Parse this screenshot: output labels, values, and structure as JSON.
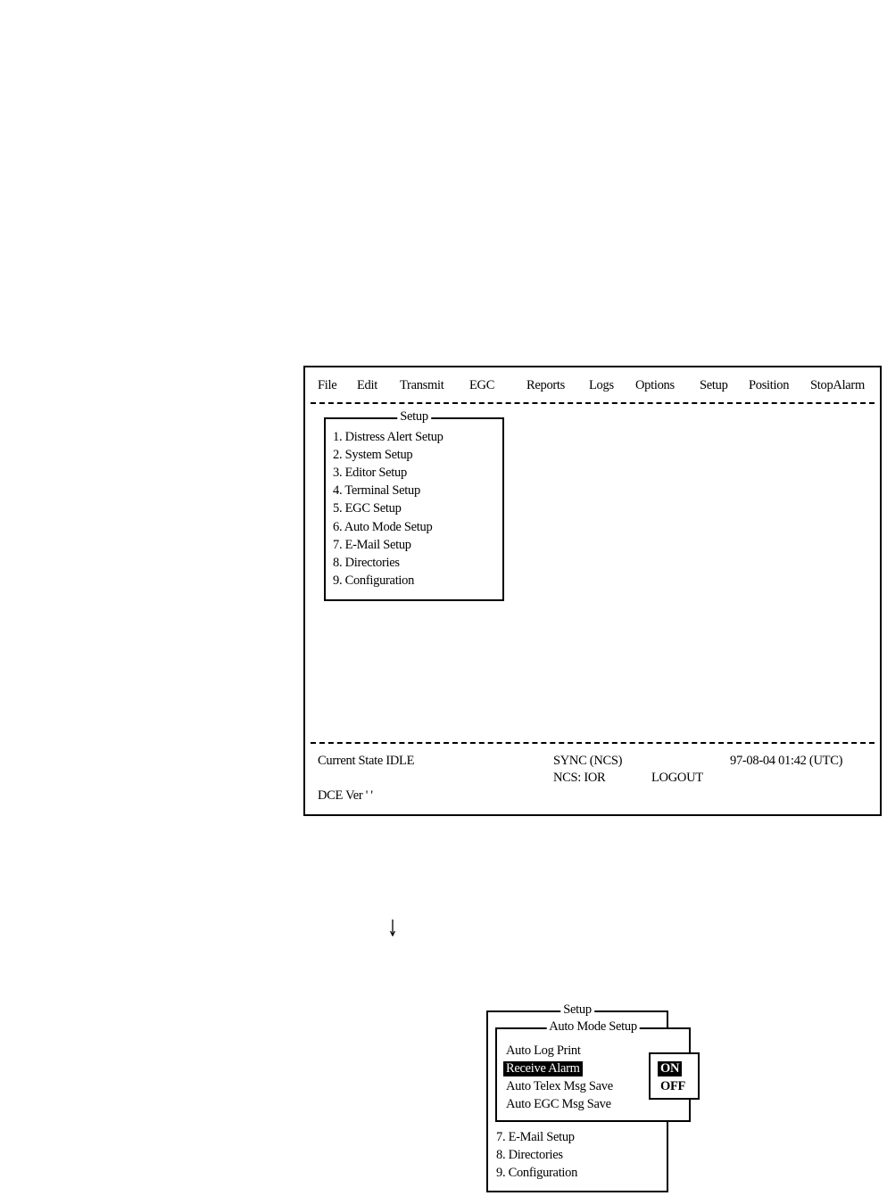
{
  "menu_bar": [
    "File",
    "Edit",
    "Transmit",
    "EGC",
    "Reports",
    "Logs",
    "Options",
    "Setup",
    "Position",
    "StopAlarm"
  ],
  "setup_menu": {
    "title": "Setup",
    "items": [
      "1. Distress Alert Setup",
      "2. System Setup",
      "3. Editor Setup",
      "4. Terminal Setup",
      "5. EGC Setup",
      "6. Auto Mode Setup",
      "7. E-Mail Setup",
      "8. Directories",
      "9. Configuration"
    ]
  },
  "status": {
    "current_state": "Current State IDLE",
    "sync": "SYNC (NCS)",
    "datetime": "97-08-04  01:42 (UTC)",
    "ncs": "NCS: IOR",
    "login": "LOGOUT",
    "dce_ver": "DCE Ver ' '"
  },
  "arrow_icon": "down-arrow",
  "detail": {
    "outer_title": "Setup",
    "inner_title": "Auto Mode Setup",
    "inner_items": [
      "Auto Log Print",
      "Receive Alarm",
      "Auto Telex Msg Save",
      "Auto EGC Msg Save"
    ],
    "selected_item": "Receive Alarm",
    "remaining_items": [
      "7. E-Mail Setup",
      "8. Directories",
      "9. Configuration"
    ],
    "options": [
      "ON",
      "OFF"
    ],
    "selected_option": "ON"
  }
}
